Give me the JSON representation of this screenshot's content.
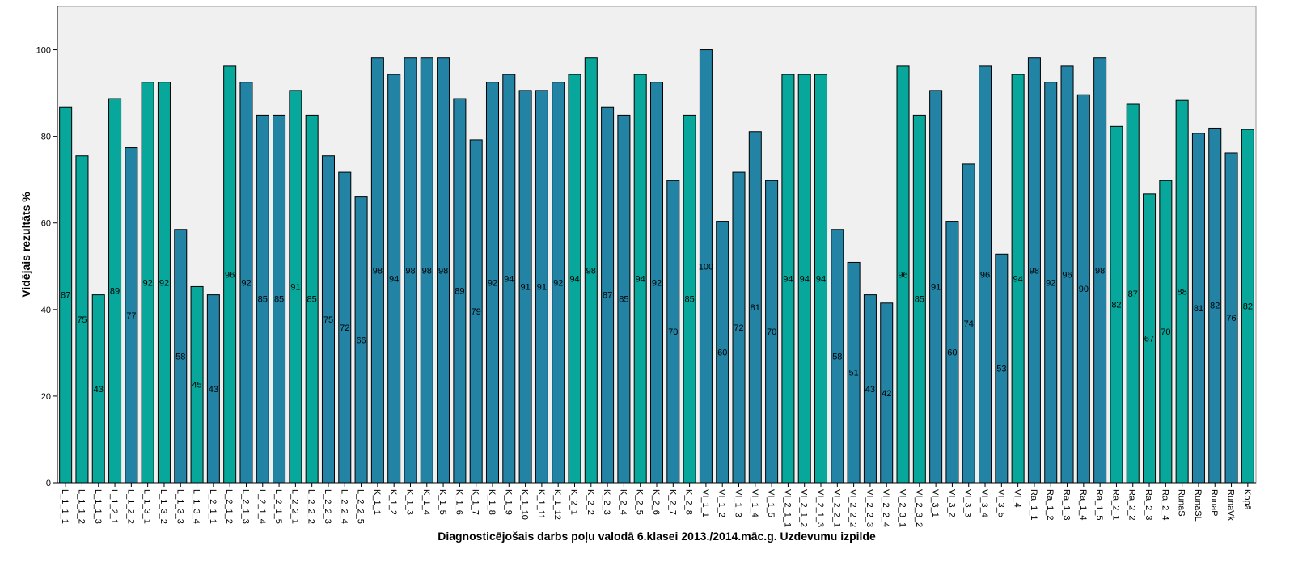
{
  "chart_data": {
    "type": "bar",
    "title": "",
    "xlabel": "Diagnosticējošais darbs poļu valodā 6.klasei 2013./2014.māc.g. Uzdevumu izpilde",
    "ylabel": "Vidējais rezultāts %",
    "ylim": [
      0,
      110
    ],
    "yticks": [
      0,
      20,
      40,
      60,
      80,
      100
    ],
    "grid": false,
    "legend": "none",
    "colors": {
      "teal": "#07A89B",
      "blue": "#2283A5",
      "plot_background": "#F0F0F0",
      "border": "#000000"
    },
    "categories": [
      "L_1_1_1",
      "L_1_1_2",
      "L_1_1_3",
      "L_1_2_1",
      "L_1_2_2",
      "L_1_3_1",
      "L_1_3_2",
      "L_1_3_3",
      "L_1_3_4",
      "L_2_1_1",
      "L_2_1_2",
      "L_2_1_3",
      "L_2_1_4",
      "L_2_1_5",
      "L_2_2_1",
      "L_2_2_2",
      "L_2_2_3",
      "L_2_2_4",
      "L_2_2_5",
      "K_1_1",
      "K_1_2",
      "K_1_3",
      "K_1_4",
      "K_1_5",
      "K_1_6",
      "K_1_7",
      "K_1_8",
      "K_1_9",
      "K_1_10",
      "K_1_11",
      "K_1_12",
      "K_2_1",
      "K_2_2",
      "K_2_3",
      "K_2_4",
      "K_2_5",
      "K_2_6",
      "K_2_7",
      "K_2_8",
      "VI_1_1",
      "VI_1_2",
      "VI_1_3",
      "VI_1_4",
      "VI_1_5",
      "VI_2_1_1",
      "VI_2_1_2",
      "VI_2_1_3",
      "VI_2_2_1",
      "VI_2_2_2",
      "VI_2_2_3",
      "VI_2_2_4",
      "VI_2_3_1",
      "VI_2_3_2",
      "VI_3_1",
      "VI_3_2",
      "VI_3_3",
      "VI_3_4",
      "VI_3_5",
      "VI_4",
      "Ra_1_1",
      "Ra_1_2",
      "Ra_1_3",
      "Ra_1_4",
      "Ra_1_5",
      "Ra_2_1",
      "Ra_2_2",
      "Ra_2_3",
      "Ra_2_4",
      "RunaS",
      "RunaSL",
      "RunaP",
      "RunaVk",
      "Kopā"
    ],
    "values": [
      86.8,
      75.5,
      43.4,
      88.7,
      77.4,
      92.5,
      92.5,
      58.5,
      45.3,
      43.4,
      96.2,
      92.5,
      84.9,
      84.9,
      90.6,
      84.9,
      75.5,
      71.7,
      66.0,
      98.1,
      94.3,
      98.1,
      98.1,
      98.1,
      88.7,
      79.2,
      92.5,
      94.3,
      90.6,
      90.6,
      92.5,
      94.3,
      98.1,
      86.8,
      84.9,
      94.3,
      92.5,
      69.8,
      84.9,
      100.0,
      60.4,
      71.7,
      81.1,
      69.8,
      94.3,
      94.3,
      94.3,
      58.5,
      50.9,
      43.4,
      41.5,
      96.2,
      84.9,
      90.6,
      60.4,
      73.6,
      96.2,
      52.8,
      94.3,
      98.1,
      92.5,
      96.2,
      89.6,
      98.1,
      82.3,
      87.4,
      66.7,
      69.8,
      88.3,
      80.7,
      81.9,
      76.2,
      81.6
    ],
    "data_labels": [
      "87",
      "75",
      "43",
      "89",
      "77",
      "92",
      "92",
      "58",
      "45",
      "43",
      "96",
      "92",
      "85",
      "85",
      "91",
      "85",
      "75",
      "72",
      "66",
      "98",
      "94",
      "98",
      "98",
      "98",
      "89",
      "79",
      "92",
      "94",
      "91",
      "91",
      "92",
      "94",
      "98",
      "87",
      "85",
      "94",
      "92",
      "70",
      "85",
      "100",
      "60",
      "72",
      "81",
      "70",
      "94",
      "94",
      "94",
      "58",
      "51",
      "43",
      "42",
      "96",
      "85",
      "91",
      "60",
      "74",
      "96",
      "53",
      "94",
      "98",
      "92",
      "96",
      "90",
      "98",
      "82",
      "87",
      "67",
      "70",
      "88",
      "81",
      "82",
      "76",
      "82"
    ],
    "bar_colors": [
      "teal",
      "teal",
      "teal",
      "teal",
      "blue",
      "teal",
      "teal",
      "blue",
      "teal",
      "blue",
      "teal",
      "blue",
      "blue",
      "blue",
      "teal",
      "teal",
      "blue",
      "blue",
      "blue",
      "blue",
      "blue",
      "blue",
      "blue",
      "blue",
      "blue",
      "blue",
      "blue",
      "blue",
      "blue",
      "blue",
      "blue",
      "teal",
      "teal",
      "blue",
      "blue",
      "teal",
      "blue",
      "blue",
      "teal",
      "blue",
      "blue",
      "blue",
      "blue",
      "blue",
      "teal",
      "teal",
      "teal",
      "blue",
      "blue",
      "blue",
      "blue",
      "teal",
      "teal",
      "blue",
      "blue",
      "blue",
      "blue",
      "blue",
      "teal",
      "blue",
      "blue",
      "blue",
      "blue",
      "blue",
      "teal",
      "teal",
      "teal",
      "teal",
      "teal",
      "blue",
      "blue",
      "blue",
      "teal"
    ]
  }
}
